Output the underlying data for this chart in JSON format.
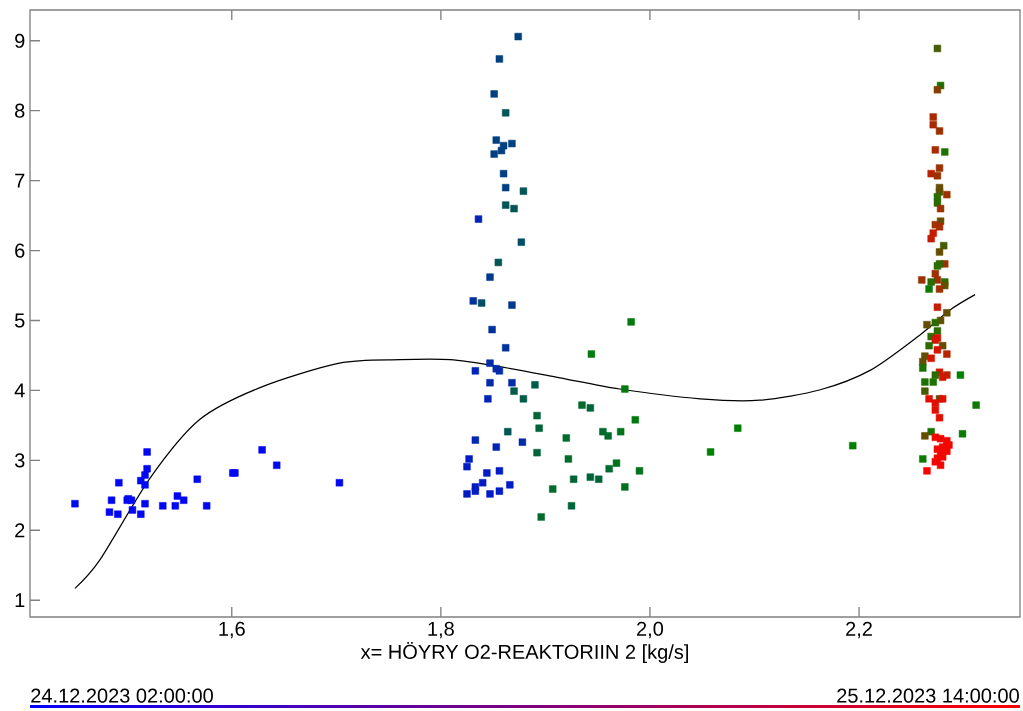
{
  "chart_data": {
    "type": "scatter",
    "xlabel": "x= HÖYRY O2-REAKTORIIN 2 [kg/s]",
    "annotations": [
      "24.12.2023 02:00:00",
      "25.12.2023 14:00:00"
    ],
    "xlim": [
      1.407,
      2.354
    ],
    "ylim": [
      0.76,
      9.44
    ],
    "xticks": [
      {
        "value": 1.6,
        "label": "1,6"
      },
      {
        "value": 1.8,
        "label": "1,8"
      },
      {
        "value": 2.0,
        "label": "2,0"
      },
      {
        "value": 2.2,
        "label": "2,2"
      }
    ],
    "yticks": [
      1,
      2,
      3,
      4,
      5,
      6,
      7,
      8,
      9
    ],
    "series": [
      {
        "marker": "square",
        "x": [
          1.45,
          1.485,
          1.492,
          1.483,
          1.491,
          1.5,
          1.501,
          1.504,
          1.505,
          1.513,
          1.513,
          1.517,
          1.519,
          1.519,
          1.517,
          1.517,
          1.534,
          1.546,
          1.548,
          1.554,
          1.567,
          1.576,
          1.601,
          1.603,
          1.629,
          1.643,
          1.703,
          1.874,
          1.856,
          1.851,
          1.862,
          1.853,
          1.86,
          1.868,
          1.858,
          1.851,
          1.86,
          1.862,
          1.879,
          1.862,
          1.87,
          1.836,
          1.877,
          1.855,
          1.847,
          1.831,
          1.839,
          1.868,
          1.849,
          1.862,
          1.847,
          1.833,
          1.853,
          1.856,
          1.847,
          1.868,
          1.89,
          1.87,
          1.879,
          1.845,
          1.892,
          1.894,
          1.864,
          1.92,
          1.833,
          1.878,
          1.853,
          1.892,
          1.922,
          1.827,
          1.825,
          1.844,
          1.856,
          1.84,
          1.833,
          1.866,
          1.825,
          1.833,
          1.847,
          1.856,
          1.907,
          1.896,
          1.982,
          1.944,
          1.976,
          1.935,
          1.943,
          1.986,
          1.955,
          1.96,
          1.972,
          1.961,
          1.968,
          1.927,
          1.943,
          1.951,
          1.99,
          1.976,
          1.925,
          2.084,
          2.058,
          2.194,
          2.275,
          2.278,
          2.275,
          2.271,
          2.271,
          2.277,
          2.273,
          2.282,
          2.277,
          2.269,
          2.275,
          2.277,
          2.277,
          2.284,
          2.275,
          2.275,
          2.278,
          2.278,
          2.273,
          2.277,
          2.271,
          2.269,
          2.281,
          2.277,
          2.282,
          2.277,
          2.275,
          2.273,
          2.275,
          2.26,
          2.269,
          2.282,
          2.282,
          2.267,
          2.277,
          2.275,
          2.284,
          2.265,
          2.278,
          2.273,
          2.275,
          2.269,
          2.275,
          2.273,
          2.267,
          2.28,
          2.275,
          2.284,
          2.263,
          2.269,
          2.261,
          2.261,
          2.297,
          2.277,
          2.273,
          2.284,
          2.28,
          2.263,
          2.271,
          2.263,
          2.267,
          2.277,
          2.28,
          2.273,
          2.312,
          2.273,
          2.277,
          2.269,
          2.263,
          2.299,
          2.273,
          2.278,
          2.284,
          2.286,
          2.28,
          2.275,
          2.284,
          2.278,
          2.275,
          2.28,
          2.261,
          2.273,
          2.278,
          2.265
        ],
        "values": [
          2.38,
          2.43,
          2.68,
          2.26,
          2.23,
          2.43,
          2.45,
          2.43,
          2.29,
          2.23,
          2.71,
          2.79,
          2.88,
          3.12,
          2.65,
          2.38,
          2.35,
          2.35,
          2.49,
          2.43,
          2.73,
          2.35,
          2.82,
          2.82,
          3.15,
          2.93,
          2.68,
          9.06,
          8.74,
          8.24,
          7.97,
          7.58,
          7.5,
          7.53,
          7.43,
          7.38,
          7.1,
          6.9,
          6.85,
          6.65,
          6.6,
          6.45,
          6.12,
          5.83,
          5.62,
          5.28,
          5.25,
          5.22,
          4.87,
          4.61,
          4.39,
          4.28,
          4.31,
          4.28,
          4.11,
          4.11,
          4.08,
          3.99,
          3.88,
          3.88,
          3.64,
          3.46,
          3.41,
          3.32,
          3.29,
          3.26,
          3.19,
          3.11,
          3.02,
          3.02,
          2.91,
          2.82,
          2.85,
          2.68,
          2.62,
          2.65,
          2.52,
          2.56,
          2.52,
          2.56,
          2.59,
          2.19,
          4.98,
          4.52,
          4.02,
          3.79,
          3.75,
          3.58,
          3.41,
          3.35,
          3.41,
          2.88,
          2.96,
          2.73,
          2.76,
          2.73,
          2.85,
          2.62,
          2.35,
          3.46,
          3.12,
          3.21,
          8.89,
          8.36,
          8.3,
          7.91,
          7.8,
          7.71,
          7.44,
          7.41,
          7.18,
          7.1,
          7.07,
          6.9,
          6.84,
          6.8,
          6.77,
          6.68,
          6.6,
          6.42,
          6.37,
          6.34,
          6.25,
          6.17,
          6.07,
          5.98,
          5.81,
          5.81,
          5.78,
          5.67,
          5.58,
          5.58,
          5.55,
          5.55,
          5.5,
          5.45,
          5.45,
          5.19,
          5.11,
          4.94,
          5.0,
          4.97,
          4.85,
          4.77,
          4.75,
          4.72,
          4.64,
          4.64,
          4.58,
          4.52,
          4.49,
          4.46,
          4.41,
          4.32,
          4.22,
          4.26,
          4.22,
          4.22,
          4.19,
          4.12,
          4.12,
          3.99,
          3.88,
          3.88,
          3.88,
          3.82,
          3.79,
          3.72,
          3.61,
          3.41,
          3.35,
          3.38,
          3.33,
          3.31,
          3.28,
          3.22,
          3.19,
          3.16,
          3.13,
          3.11,
          3.03,
          3.05,
          3.02,
          2.98,
          2.93,
          2.85
        ],
        "colors": [
          "#0007F1",
          "#0007F1",
          "#0007F1",
          "#0007F1",
          "#0007F1",
          "#0007F1",
          "#0007F1",
          "#0007F1",
          "#0007F1",
          "#0007F1",
          "#0007F1",
          "#0007F1",
          "#0007F1",
          "#0007F1",
          "#0007F1",
          "#0007F1",
          "#0007F1",
          "#0007F1",
          "#0007F1",
          "#0007F1",
          "#0007F1",
          "#0007F1",
          "#0007F1",
          "#0007F1",
          "#0007F1",
          "#0007F1",
          "#0007F1",
          "#004080",
          "#004080",
          "#004080",
          "#005555",
          "#004080",
          "#004080",
          "#004080",
          "#004080",
          "#004080",
          "#004080",
          "#004080",
          "#005555",
          "#005555",
          "#005555",
          "#0024B8",
          "#004E63",
          "#005555",
          "#00398E",
          "#00329C",
          "#004E63",
          "#00398E",
          "#00329C",
          "#00329C",
          "#002BAA",
          "#0024B8",
          "#002BAA",
          "#002BAA",
          "#002BAA",
          "#002BAA",
          "#005C47",
          "#005C47",
          "#005C47",
          "#0024B8",
          "#006439",
          "#006439",
          "#005555",
          "#006B2B",
          "#0024B8",
          "#002BAA",
          "#0024B8",
          "#006439",
          "#006B2B",
          "#001CC6",
          "#001CC6",
          "#001CC6",
          "#001CC6",
          "#001CC6",
          "#001CC6",
          "#001CC6",
          "#001CC6",
          "#001CC6",
          "#001CC6",
          "#001CC6",
          "#006B2B",
          "#006B2B",
          "#00790E",
          "#00790E",
          "#00790E",
          "#006B2B",
          "#006439",
          "#00790E",
          "#006B2B",
          "#006B2B",
          "#00721C",
          "#006B2B",
          "#00721C",
          "#006439",
          "#006439",
          "#006439",
          "#00721C",
          "#00721C",
          "#006439",
          "#008000",
          "#008000",
          "#008000",
          "#475C00",
          "#1C7200",
          "#804000",
          "#AA2B00",
          "#AA2B00",
          "#9C3200",
          "#AA2B00",
          "#1C7200",
          "#9C3200",
          "#B82400",
          "#9C3200",
          "#634E00",
          "#634E00",
          "#9C3200",
          "#2B6B00",
          "#2B6B00",
          "#9C3200",
          "#634E00",
          "#9C3200",
          "#AA2B00",
          "#C61C00",
          "#C61C00",
          "#475C00",
          "#634E00",
          "#9C3200",
          "#396400",
          "#2B6B00",
          "#9C3200",
          "#9C3200",
          "#9C3200",
          "#2B6B00",
          "#2B6B00",
          "#634E00",
          "#0E7900",
          "#9C3200",
          "#C61C00",
          "#634E00",
          "#634E00",
          "#634E00",
          "#2B6B00",
          "#2B6B00",
          "#2B6B00",
          "#D51500",
          "#D51500",
          "#2B6B00",
          "#634E00",
          "#D51500",
          "#B82400",
          "#634E00",
          "#D51500",
          "#634E00",
          "#1C7200",
          "#008000",
          "#D51500",
          "#2B6B00",
          "#B82400",
          "#D51500",
          "#1C7200",
          "#1C7200",
          "#475C00",
          "#E30E00",
          "#634E00",
          "#E30E00",
          "#E30E00",
          "#0E7900",
          "#E30E00",
          "#E30E00",
          "#1C7200",
          "#634E00",
          "#0E7900",
          "#F10700",
          "#F10700",
          "#F10700",
          "#F10700",
          "#F10700",
          "#F10700",
          "#F10700",
          "#F10700",
          "#F10700",
          "#F10700",
          "#0E7900",
          "#F10700",
          "#F10700",
          "#FF0000"
        ]
      },
      {
        "type": "line",
        "color": "#000000",
        "marker": "none",
        "x": [
          1.45,
          1.474,
          1.522,
          1.569,
          1.627,
          1.703,
          1.761,
          1.809,
          1.856,
          1.914,
          1.971,
          2.048,
          2.105,
          2.163,
          2.211,
          2.258,
          2.287,
          2.311
        ],
        "values": [
          1.17,
          1.58,
          2.75,
          3.58,
          4.04,
          4.39,
          4.44,
          4.44,
          4.34,
          4.18,
          4.02,
          3.88,
          3.86,
          4.01,
          4.29,
          4.79,
          5.15,
          5.37
        ]
      }
    ]
  }
}
